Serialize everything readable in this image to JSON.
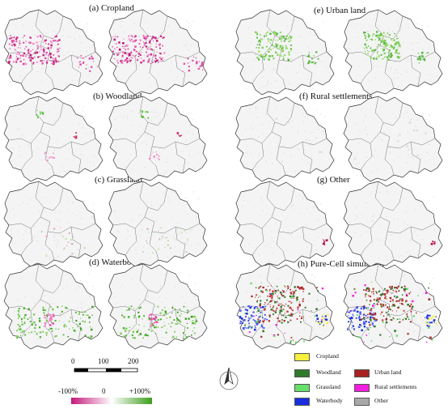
{
  "panels": [
    {
      "id": "a",
      "title": "(a) Cropland",
      "accent": "#e04aa8"
    },
    {
      "id": "b",
      "title": "(b) Woodland",
      "accent": "#52b83a"
    },
    {
      "id": "c",
      "title": "(c) Grassland",
      "accent": "#9ccf7a"
    },
    {
      "id": "d",
      "title": "(d) Waterbody",
      "accent": "#52b83a"
    },
    {
      "id": "e",
      "title": "(e) Urban land",
      "accent": "#52b83a"
    },
    {
      "id": "f",
      "title": "(f) Rural settlements",
      "accent": "#cccccc"
    },
    {
      "id": "g",
      "title": "(g) Other",
      "accent": "#d0205a"
    },
    {
      "id": "h",
      "title": "(h) Pure-Cell simulation",
      "accent": "#a82a2a"
    }
  ],
  "scale_bar": {
    "ticks": [
      "0",
      "100",
      "200"
    ]
  },
  "color_bar": {
    "min_label": "-100%",
    "mid_label": "0",
    "max_label": "+100%",
    "colors": [
      "#c2187a",
      "#ffffff",
      "#3f9e1e"
    ]
  },
  "legend": {
    "items": [
      {
        "name": "legend-cropland",
        "label": "Cropland",
        "color": "#f7ef3a"
      },
      {
        "name": "legend-woodland",
        "label": "Woodland",
        "color": "#2f7a2a"
      },
      {
        "name": "legend-grassland",
        "label": "Grassland",
        "color": "#66e06a"
      },
      {
        "name": "legend-waterbody",
        "label": "Waterbody",
        "color": "#1a2ee0"
      },
      {
        "name": "legend-urban-land",
        "label": "Urban land",
        "color": "#a82222"
      },
      {
        "name": "legend-rural-settlements",
        "label": "Rural settlements",
        "color": "#f21ee0"
      },
      {
        "name": "legend-other",
        "label": "Other",
        "color": "#a8a8a8"
      }
    ]
  }
}
